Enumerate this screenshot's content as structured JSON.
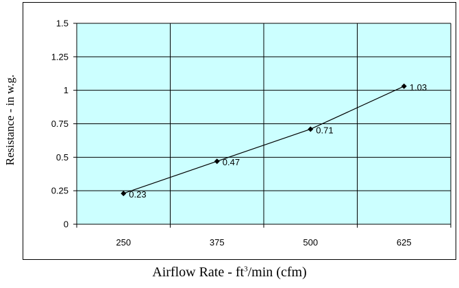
{
  "chart_data": {
    "type": "line",
    "categories": [
      "250",
      "375",
      "500",
      "625"
    ],
    "values": [
      0.23,
      0.47,
      0.71,
      1.03
    ],
    "data_labels": [
      "0.23",
      "0.47",
      "0.71",
      "1.03"
    ],
    "title": "",
    "xlabel_prefix": "Airflow Rate - ft",
    "xlabel_sup": "3",
    "xlabel_suffix": "/min (cfm)",
    "ylabel": "Resistance - in w.g.",
    "ylim": [
      0,
      1.5
    ],
    "yticks": [
      "0",
      "0.25",
      "0.5",
      "0.75",
      "1",
      "1.25",
      "1.5"
    ],
    "grid": true,
    "plot_background": "#CCFFFF",
    "line_color": "#000000",
    "marker": "diamond"
  }
}
